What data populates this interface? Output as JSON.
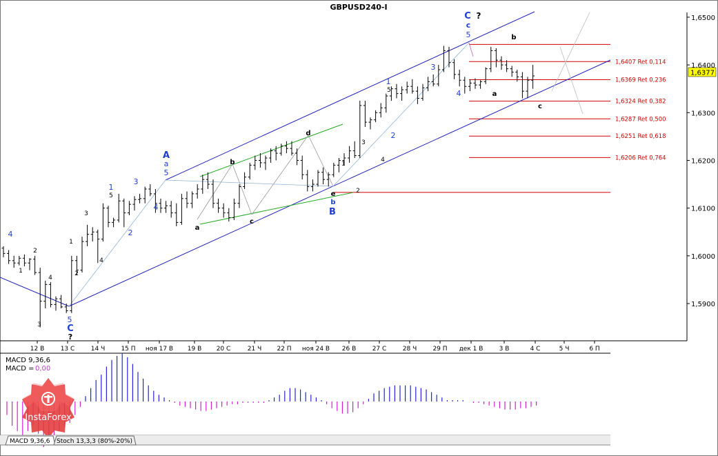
{
  "window": {
    "title": "GBPUSD240-I",
    "macd_label": "MACD 9,36,6",
    "macd_value_label": "MACD =",
    "macd_value": "0,00",
    "tabs": [
      "MACD 9,36,6",
      "Stoch 13,3,3 (80%-20%)"
    ],
    "logo_text": "InstaForex"
  },
  "colors": {
    "background": "#ffffff",
    "axis": "#000000",
    "channel": "#1f1fbf",
    "fibo": "#d00000",
    "wave_blue": "#1f3fcf",
    "wave_black": "#000000",
    "green_channel": "#22aa22",
    "macd_pos": "#2323d8",
    "macd_neg": "#d020d0",
    "price_badge": "#ffff00",
    "logo": "#e23a3a"
  },
  "chart_data": {
    "type": "candlestick",
    "symbol": "GBPUSD",
    "timeframe": "H4",
    "y_axis": {
      "ticks": [
        "1,6500",
        "1,6400",
        "1,6300",
        "1,6200",
        "1,6100",
        "1,6000",
        "1,5900"
      ],
      "tick_values": [
        1.65,
        1.64,
        1.63,
        1.62,
        1.61,
        1.6,
        1.59
      ],
      "range": [
        1.5822,
        1.651
      ],
      "current_price": "1,6377",
      "current_value": 1.6377
    },
    "x_axis": {
      "ticks": [
        "12 В",
        "13 С",
        "14 Ч",
        "15 П",
        "ноя 17 В",
        "19 В",
        "20 С",
        "21 Ч",
        "22 П",
        "ноя 24 В",
        "26 В",
        "27 С",
        "28 Ч",
        "29 П",
        "дек 1 В",
        "3 В",
        "4 С",
        "5 Ч",
        "6 П"
      ]
    },
    "fibo_levels": [
      {
        "price": 1.6443,
        "label": ""
      },
      {
        "price": 1.6407,
        "label": "1,6407 Ret 0,114"
      },
      {
        "price": 1.6369,
        "label": "1,6369 Ret 0,236"
      },
      {
        "price": 1.6324,
        "label": "1,6324 Ret 0,382"
      },
      {
        "price": 1.6287,
        "label": "1,6287 Ret 0,500"
      },
      {
        "price": 1.6251,
        "label": "1,6251 Ret 0,618"
      },
      {
        "price": 1.6206,
        "label": "1,6206 Ret 0,764"
      },
      {
        "price": 1.6133,
        "label": ""
      }
    ],
    "wave_labels": [
      {
        "text": "4",
        "color": "blue"
      },
      {
        "text": "1",
        "color": "black"
      },
      {
        "text": "2",
        "color": "black"
      },
      {
        "text": "4",
        "color": "black"
      },
      {
        "text": "3",
        "color": "black"
      },
      {
        "text": "1",
        "color": "black"
      },
      {
        "text": "2",
        "color": "black"
      },
      {
        "text": "5",
        "color": "blue"
      },
      {
        "text": "C",
        "color": "blue"
      },
      {
        "text": "?",
        "color": "black"
      },
      {
        "text": "3",
        "color": "black"
      },
      {
        "text": "4",
        "color": "black"
      },
      {
        "text": "1",
        "color": "blue"
      },
      {
        "text": "5",
        "color": "black"
      },
      {
        "text": "2",
        "color": "blue"
      },
      {
        "text": "3",
        "color": "blue"
      },
      {
        "text": "4",
        "color": "blue"
      },
      {
        "text": "A",
        "color": "blue"
      },
      {
        "text": "a",
        "color": "blue"
      },
      {
        "text": "5",
        "color": "blue"
      },
      {
        "text": "a",
        "color": "black"
      },
      {
        "text": "b",
        "color": "black"
      },
      {
        "text": "c",
        "color": "black"
      },
      {
        "text": "d",
        "color": "black"
      },
      {
        "text": "e",
        "color": "black"
      },
      {
        "text": "b",
        "color": "blue"
      },
      {
        "text": "B",
        "color": "blue"
      },
      {
        "text": "1",
        "color": "black"
      },
      {
        "text": "2",
        "color": "black"
      },
      {
        "text": "3",
        "color": "black"
      },
      {
        "text": "4",
        "color": "black"
      },
      {
        "text": "1",
        "color": "blue"
      },
      {
        "text": "5",
        "color": "black"
      },
      {
        "text": "2",
        "color": "blue"
      },
      {
        "text": "3",
        "color": "blue"
      },
      {
        "text": "4",
        "color": "blue"
      },
      {
        "text": "C",
        "color": "blue"
      },
      {
        "text": "c",
        "color": "blue"
      },
      {
        "text": "5",
        "color": "blue"
      },
      {
        "text": "?",
        "color": "black"
      },
      {
        "text": "b",
        "color": "black"
      },
      {
        "text": "a",
        "color": "black"
      },
      {
        "text": "c",
        "color": "black"
      }
    ],
    "ohlc": [
      [
        1.6016,
        1.602,
        1.5997,
        1.6005
      ],
      [
        1.6005,
        1.6012,
        1.5983,
        1.599
      ],
      [
        1.599,
        1.6,
        1.5975,
        1.5985
      ],
      [
        1.5985,
        1.6,
        1.598,
        1.5995
      ],
      [
        1.5995,
        1.6003,
        1.5978,
        1.5985
      ],
      [
        1.5985,
        1.5995,
        1.597,
        1.5993
      ],
      [
        1.5993,
        1.6,
        1.596,
        1.5965
      ],
      [
        1.5965,
        1.5975,
        1.585,
        1.5905
      ],
      [
        1.5905,
        1.5948,
        1.589,
        1.594
      ],
      [
        1.594,
        1.5945,
        1.5892,
        1.5898
      ],
      [
        1.5898,
        1.5915,
        1.5885,
        1.591
      ],
      [
        1.591,
        1.5918,
        1.589,
        1.5893
      ],
      [
        1.5893,
        1.59,
        1.588,
        1.5885
      ],
      [
        1.5885,
        1.6,
        1.588,
        1.599
      ],
      [
        1.599,
        1.6,
        1.596,
        1.597
      ],
      [
        1.597,
        1.604,
        1.5965,
        1.603
      ],
      [
        1.603,
        1.6065,
        1.602,
        1.6045
      ],
      [
        1.6045,
        1.606,
        1.603,
        1.605
      ],
      [
        1.605,
        1.6055,
        1.5985,
        1.6035
      ],
      [
        1.6035,
        1.611,
        1.603,
        1.61
      ],
      [
        1.61,
        1.6105,
        1.606,
        1.607
      ],
      [
        1.607,
        1.608,
        1.606,
        1.6075
      ],
      [
        1.6075,
        1.613,
        1.607,
        1.6115
      ],
      [
        1.6115,
        1.612,
        1.606,
        1.609
      ],
      [
        1.609,
        1.6115,
        1.6085,
        1.6108
      ],
      [
        1.6108,
        1.6125,
        1.6095,
        1.6118
      ],
      [
        1.6118,
        1.613,
        1.611,
        1.612
      ],
      [
        1.612,
        1.6145,
        1.611,
        1.614
      ],
      [
        1.614,
        1.615,
        1.6125,
        1.613
      ],
      [
        1.613,
        1.614,
        1.609,
        1.611
      ],
      [
        1.611,
        1.612,
        1.609,
        1.61
      ],
      [
        1.61,
        1.6115,
        1.609,
        1.6105
      ],
      [
        1.6105,
        1.6115,
        1.608,
        1.609
      ],
      [
        1.609,
        1.611,
        1.6062,
        1.607
      ],
      [
        1.607,
        1.613,
        1.6065,
        1.612
      ],
      [
        1.612,
        1.6135,
        1.61,
        1.611
      ],
      [
        1.611,
        1.6135,
        1.61,
        1.613
      ],
      [
        1.613,
        1.615,
        1.612,
        1.614
      ],
      [
        1.614,
        1.617,
        1.613,
        1.616
      ],
      [
        1.616,
        1.6175,
        1.614,
        1.615
      ],
      [
        1.615,
        1.616,
        1.61,
        1.611
      ],
      [
        1.611,
        1.612,
        1.609,
        1.61
      ],
      [
        1.61,
        1.611,
        1.608,
        1.609
      ],
      [
        1.609,
        1.61,
        1.6072,
        1.608
      ],
      [
        1.608,
        1.612,
        1.6075,
        1.611
      ],
      [
        1.611,
        1.615,
        1.61,
        1.6145
      ],
      [
        1.6145,
        1.6175,
        1.614,
        1.6165
      ],
      [
        1.6165,
        1.6195,
        1.616,
        1.619
      ],
      [
        1.619,
        1.621,
        1.618,
        1.62
      ],
      [
        1.62,
        1.6215,
        1.6185,
        1.6195
      ],
      [
        1.6195,
        1.621,
        1.618,
        1.6205
      ],
      [
        1.6205,
        1.6225,
        1.6195,
        1.622
      ],
      [
        1.622,
        1.623,
        1.62,
        1.6215
      ],
      [
        1.6215,
        1.6235,
        1.621,
        1.623
      ],
      [
        1.623,
        1.624,
        1.6215,
        1.6225
      ],
      [
        1.6225,
        1.624,
        1.621,
        1.6215
      ],
      [
        1.6215,
        1.6225,
        1.619,
        1.62
      ],
      [
        1.62,
        1.621,
        1.616,
        1.617
      ],
      [
        1.617,
        1.618,
        1.6135,
        1.6145
      ],
      [
        1.6145,
        1.616,
        1.6135,
        1.615
      ],
      [
        1.615,
        1.618,
        1.6145,
        1.6175
      ],
      [
        1.6175,
        1.6185,
        1.615,
        1.616
      ],
      [
        1.616,
        1.6175,
        1.6145,
        1.617
      ],
      [
        1.617,
        1.6195,
        1.6165,
        1.619
      ],
      [
        1.619,
        1.6205,
        1.6175,
        1.62
      ],
      [
        1.62,
        1.6215,
        1.619,
        1.6205
      ],
      [
        1.6205,
        1.623,
        1.6195,
        1.622
      ],
      [
        1.622,
        1.624,
        1.6205,
        1.621
      ],
      [
        1.621,
        1.6325,
        1.6205,
        1.6315
      ],
      [
        1.6315,
        1.6325,
        1.627,
        1.628
      ],
      [
        1.628,
        1.629,
        1.6265,
        1.6285
      ],
      [
        1.6285,
        1.6305,
        1.628,
        1.63
      ],
      [
        1.63,
        1.632,
        1.629,
        1.631
      ],
      [
        1.631,
        1.634,
        1.63,
        1.6335
      ],
      [
        1.6335,
        1.6355,
        1.6325,
        1.635
      ],
      [
        1.635,
        1.636,
        1.633,
        1.634
      ],
      [
        1.634,
        1.6355,
        1.6325,
        1.6348
      ],
      [
        1.6348,
        1.6365,
        1.634,
        1.6355
      ],
      [
        1.6355,
        1.637,
        1.634,
        1.6345
      ],
      [
        1.6345,
        1.6355,
        1.6318,
        1.633
      ],
      [
        1.633,
        1.636,
        1.6325,
        1.6352
      ],
      [
        1.6352,
        1.6375,
        1.6345,
        1.6365
      ],
      [
        1.6365,
        1.638,
        1.6355,
        1.636
      ],
      [
        1.636,
        1.64,
        1.6355,
        1.639
      ],
      [
        1.639,
        1.644,
        1.6385,
        1.643
      ],
      [
        1.643,
        1.6438,
        1.6395,
        1.6405
      ],
      [
        1.6405,
        1.6412,
        1.637,
        1.638
      ],
      [
        1.638,
        1.639,
        1.6355,
        1.6368
      ],
      [
        1.6368,
        1.6375,
        1.634,
        1.6355
      ],
      [
        1.6355,
        1.637,
        1.6345,
        1.6362
      ],
      [
        1.6362,
        1.6372,
        1.635,
        1.6358
      ],
      [
        1.6358,
        1.6368,
        1.635,
        1.6365
      ],
      [
        1.6365,
        1.6395,
        1.636,
        1.6392
      ],
      [
        1.6392,
        1.6438,
        1.6385,
        1.643
      ],
      [
        1.643,
        1.6435,
        1.6395,
        1.641
      ],
      [
        1.641,
        1.6418,
        1.639,
        1.64
      ],
      [
        1.64,
        1.641,
        1.6385,
        1.6392
      ],
      [
        1.6392,
        1.6398,
        1.6375,
        1.6385
      ],
      [
        1.6385,
        1.639,
        1.6365,
        1.6375
      ],
      [
        1.6375,
        1.6385,
        1.633,
        1.6345
      ],
      [
        1.6345,
        1.6375,
        1.633,
        1.6368
      ],
      [
        1.6368,
        1.64,
        1.635,
        1.6377
      ]
    ],
    "macd": [
      -0.001,
      -0.0018,
      -0.0022,
      -0.0025,
      -0.0022,
      -0.0018,
      -0.0024,
      -0.0034,
      -0.003,
      -0.0026,
      -0.0022,
      -0.0019,
      -0.0016,
      -0.001,
      -0.0004,
      0.0004,
      0.001,
      0.0016,
      0.002,
      0.0026,
      0.0031,
      0.0034,
      0.0036,
      0.0033,
      0.0028,
      0.0022,
      0.0017,
      0.0012,
      0.0008,
      0.0005,
      0.0003,
      0.0001,
      -0.0001,
      -0.0003,
      -0.0004,
      -0.0005,
      -0.0006,
      -0.0007,
      -0.0007,
      -0.0006,
      -0.0005,
      -0.0004,
      -0.0003,
      -0.0002,
      -0.0002,
      -0.0001,
      -0.0001,
      -0.0001,
      -0.0001,
      -0.0001,
      0.0001,
      0.0003,
      0.0005,
      0.0008,
      0.001,
      0.001,
      0.0009,
      0.0007,
      0.0005,
      0.0003,
      0.0001,
      -0.0002,
      -0.0005,
      -0.0007,
      -0.0009,
      -0.0009,
      -0.0008,
      -0.0005,
      -0.0002,
      0.0002,
      0.0006,
      0.0008,
      0.001,
      0.0011,
      0.0012,
      0.0012,
      0.0012,
      0.0012,
      0.0011,
      0.001,
      0.0009,
      0.0007,
      0.0005,
      0.0003,
      0.0001,
      0.0001,
      0.0001,
      0.0001,
      0.0,
      -0.0001,
      -0.0001,
      -0.0002,
      -0.0003,
      -0.0004,
      -0.0005,
      -0.0006,
      -0.0006,
      -0.0006,
      -0.0005,
      -0.0005,
      -0.0004,
      -0.0003
    ]
  }
}
